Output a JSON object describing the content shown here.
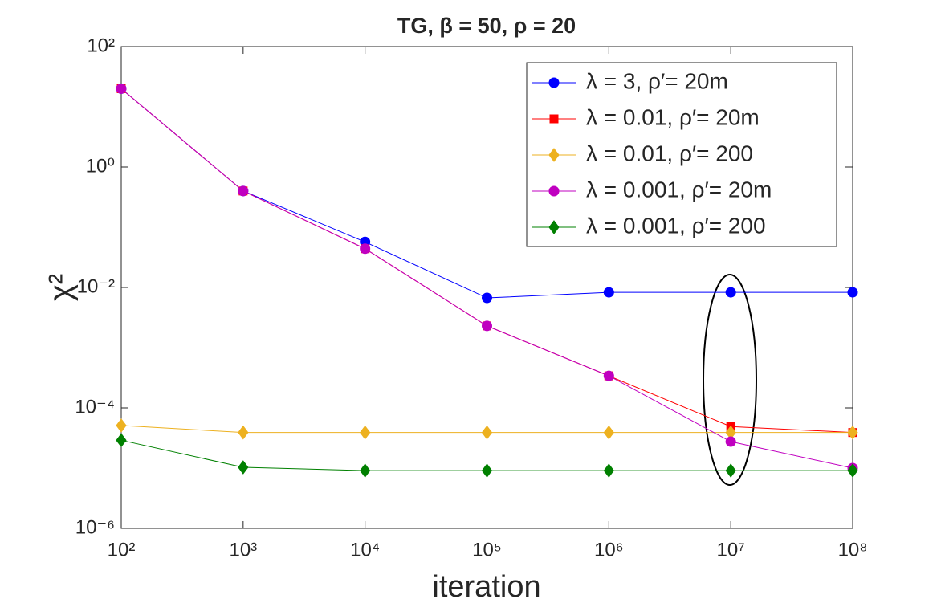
{
  "chart_data": {
    "type": "line",
    "title": "TG, β = 50, ρ = 20",
    "x_label": "iteration",
    "y_label": "χ²",
    "x": [
      100,
      1000,
      10000,
      100000,
      1000000,
      10000000,
      100000000
    ],
    "series": [
      {
        "name": "λ = 3, ρ′= 20m",
        "color": "#0000ff",
        "marker": "circle",
        "values": [
          20,
          0.4,
          0.057,
          0.0067,
          0.0083,
          0.0083,
          0.0083
        ]
      },
      {
        "name": "λ = 0.01, ρ′= 20m",
        "color": "#ff0000",
        "marker": "square",
        "values": [
          20,
          0.4,
          0.044,
          0.0023,
          0.00034,
          4.9e-05,
          3.9e-05
        ]
      },
      {
        "name": "λ = 0.01, ρ′= 200",
        "color": "#edb120",
        "marker": "diamond",
        "values": [
          5.1e-05,
          3.9e-05,
          3.9e-05,
          3.9e-05,
          3.9e-05,
          3.9e-05,
          3.9e-05
        ]
      },
      {
        "name": "λ = 0.001, ρ′= 20m",
        "color": "#c000c0",
        "marker": "circle",
        "values": [
          20,
          0.4,
          0.044,
          0.0023,
          0.00034,
          2.75e-05,
          1e-05
        ]
      },
      {
        "name": "λ = 0.001, ρ′= 200",
        "color": "#008000",
        "marker": "diamond",
        "values": [
          2.9e-05,
          1.03e-05,
          9.1e-06,
          9.1e-06,
          9.1e-06,
          9.1e-06,
          9.1e-06
        ]
      }
    ],
    "xlim": [
      100,
      100000000
    ],
    "ylim": [
      1e-06,
      100
    ],
    "xscale": "log",
    "yscale": "log",
    "xticks": [
      {
        "value": 100,
        "label": "10²"
      },
      {
        "value": 1000,
        "label": "10³"
      },
      {
        "value": 10000,
        "label": "10⁴"
      },
      {
        "value": 100000,
        "label": "10⁵"
      },
      {
        "value": 1000000,
        "label": "10⁶"
      },
      {
        "value": 10000000,
        "label": "10⁷"
      },
      {
        "value": 100000000,
        "label": "10⁸"
      }
    ],
    "yticks": [
      {
        "value": 1e-06,
        "label": "10⁻⁶"
      },
      {
        "value": 0.0001,
        "label": "10⁻⁴"
      },
      {
        "value": 0.01,
        "label": "10⁻²"
      },
      {
        "value": 1,
        "label": "10⁰"
      },
      {
        "value": 100,
        "label": "10²"
      }
    ],
    "grid": false,
    "legend": "upper right"
  }
}
